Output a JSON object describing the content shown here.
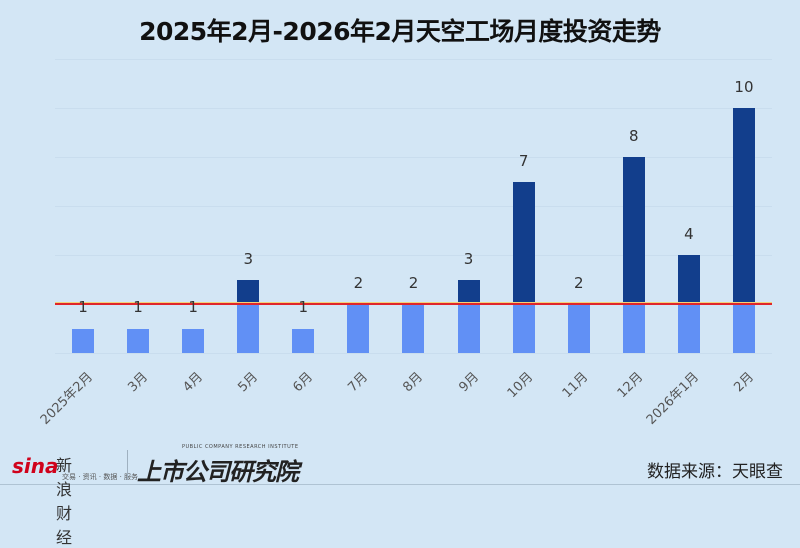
{
  "header": {
    "title": "2025年2月-2026年2月天空工场月度投资走势"
  },
  "footer": {
    "sina_logo": "sina",
    "sina_name": "新浪财经",
    "sina_tagline": "交易 · 资讯 · 数据 · 服务",
    "institute_en": "PUBLIC COMPANY RESEARCH INSTITUTE",
    "institute_cn": "上市公司研究院",
    "source": "数据来源：天眼查"
  },
  "colors": {
    "below_threshold": "#6190F5",
    "above_threshold": "#123E8C",
    "threshold_line": "#E0262A",
    "background": "#D3E6F5"
  },
  "chart_data": {
    "type": "bar",
    "title": "2025年2月-2026年2月天空工场月度投资走势",
    "xlabel": "",
    "ylabel": "",
    "categories": [
      "2025年2月",
      "3月",
      "4月",
      "5月",
      "6月",
      "7月",
      "8月",
      "9月",
      "10月",
      "11月",
      "12月",
      "2026年1月",
      "2月"
    ],
    "values": [
      1,
      1,
      1,
      3,
      1,
      2,
      2,
      3,
      7,
      2,
      8,
      4,
      10
    ],
    "ylim": [
      0,
      12
    ],
    "grid": true,
    "threshold": 2,
    "threshold_color": "#E0262A",
    "legend": null
  }
}
